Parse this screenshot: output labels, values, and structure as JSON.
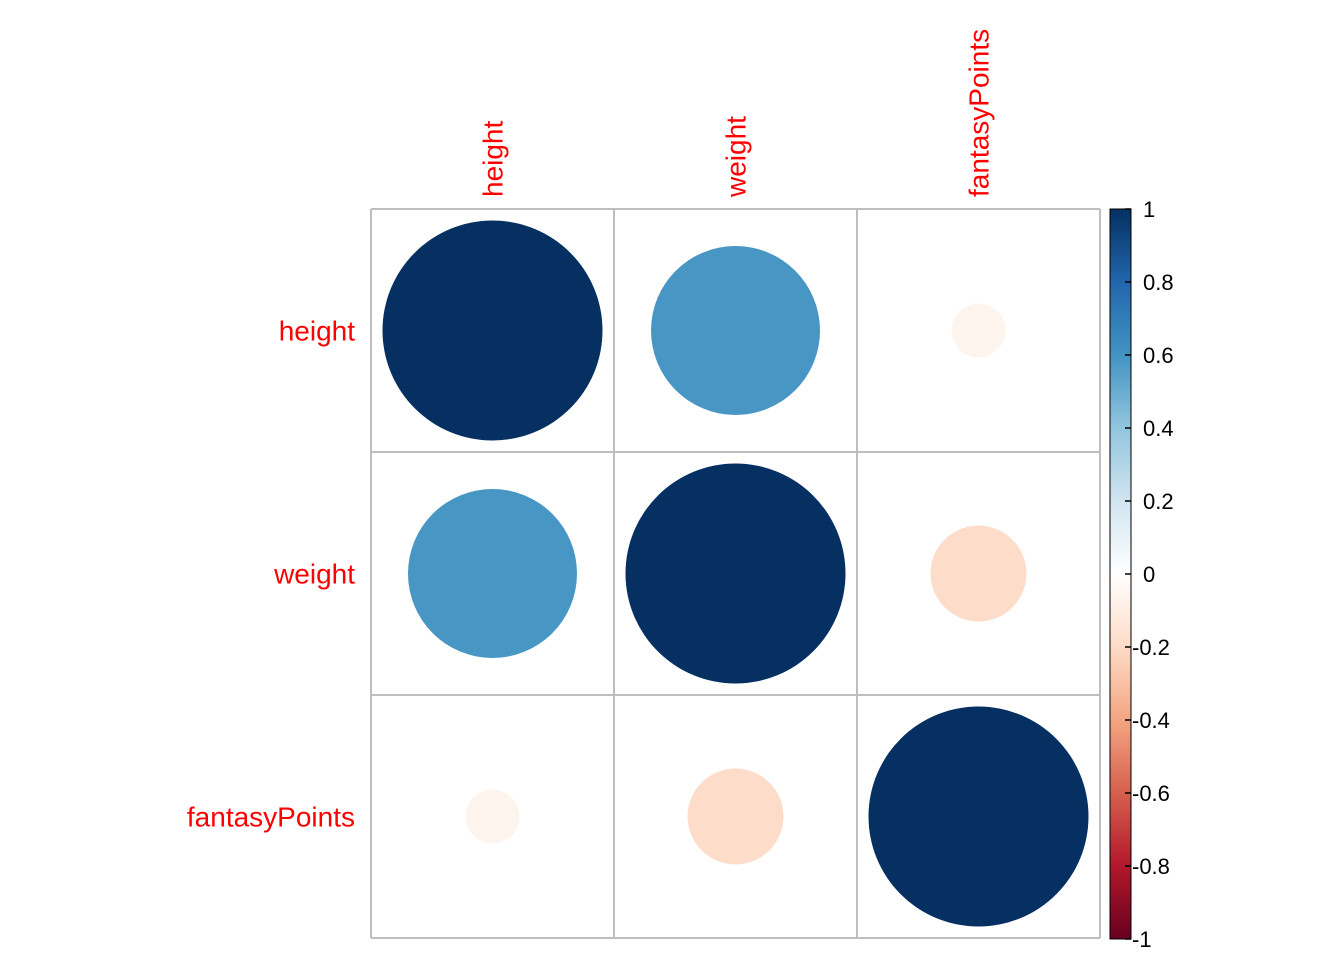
{
  "chart_data": {
    "type": "heatmap",
    "variables": [
      "height",
      "weight",
      "fantasyPoints"
    ],
    "matrix": [
      [
        1.0,
        0.59,
        -0.06
      ],
      [
        0.59,
        1.0,
        -0.19
      ],
      [
        -0.06,
        -0.19,
        1.0
      ]
    ],
    "legend": {
      "range": [
        -1,
        1
      ],
      "ticks": [
        "1",
        "0.8",
        "0.6",
        "0.4",
        "0.2",
        "0",
        "-0.2",
        "-0.4",
        "-0.6",
        "-0.8",
        "-1"
      ],
      "tick_values": [
        1,
        0.8,
        0.6,
        0.4,
        0.2,
        0,
        -0.2,
        -0.4,
        -0.6,
        -0.8,
        -1
      ],
      "colors": [
        "#67001F",
        "#B2182B",
        "#D6604D",
        "#F4A582",
        "#FDDBC7",
        "#FFFFFF",
        "#D1E5F0",
        "#92C5DE",
        "#4393C3",
        "#2166AC",
        "#053061"
      ]
    },
    "label_color": "#ff0000",
    "grid": true
  }
}
